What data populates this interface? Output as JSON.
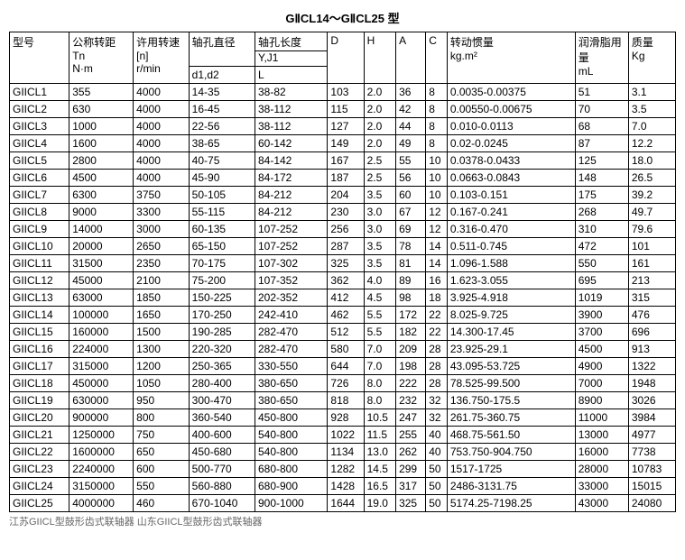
{
  "title": "GⅡCL14～GⅡCL25 型",
  "columns": {
    "model": "型号",
    "torque": "公称转距\nTn\nN·m",
    "speed": "许用转速\n[n]\nr/min",
    "bore": "轴孔直径",
    "bore_sub": "d1,d2",
    "bore_len": "轴孔长度",
    "bore_len_sub1": "Y,J1",
    "bore_len_sub2": "L",
    "D": "D",
    "H": "H",
    "A": "A",
    "C": "C",
    "inertia": "转动惯量\nkg.m²",
    "grease": "润滑脂用\n量\nmL",
    "mass": "质量\nKg"
  },
  "rows": [
    [
      "GIICL1",
      "355",
      "4000",
      "14-35",
      "38-82",
      "103",
      "2.0",
      "36",
      "8",
      "0.0035-0.00375",
      "51",
      "3.1"
    ],
    [
      "GIICL2",
      "630",
      "4000",
      "16-45",
      "38-112",
      "115",
      "2.0",
      "42",
      "8",
      "0.00550-0.00675",
      "70",
      "3.5"
    ],
    [
      "GIICL3",
      "1000",
      "4000",
      "22-56",
      "38-112",
      "127",
      "2.0",
      "44",
      "8",
      "0.010-0.0113",
      "68",
      "7.0"
    ],
    [
      "GIICL4",
      "1600",
      "4000",
      "38-65",
      "60-142",
      "149",
      "2.0",
      "49",
      "8",
      "0.02-0.0245",
      "87",
      "12.2"
    ],
    [
      "GIICL5",
      "2800",
      "4000",
      "40-75",
      "84-142",
      "167",
      "2.5",
      "55",
      "10",
      "0.0378-0.0433",
      "125",
      "18.0"
    ],
    [
      "GIICL6",
      "4500",
      "4000",
      "45-90",
      "84-172",
      "187",
      "2.5",
      "56",
      "10",
      "0.0663-0.0843",
      "148",
      "26.5"
    ],
    [
      "GIICL7",
      "6300",
      "3750",
      "50-105",
      "84-212",
      "204",
      "3.5",
      "60",
      "10",
      "0.103-0.151",
      "175",
      "39.2"
    ],
    [
      "GIICL8",
      "9000",
      "3300",
      "55-115",
      "84-212",
      "230",
      "3.0",
      "67",
      "12",
      "0.167-0.241",
      "268",
      "49.7"
    ],
    [
      "GIICL9",
      "14000",
      "3000",
      "60-135",
      "107-252",
      "256",
      "3.0",
      "69",
      "12",
      "0.316-0.470",
      "310",
      "79.6"
    ],
    [
      "GIICL10",
      "20000",
      "2650",
      "65-150",
      "107-252",
      "287",
      "3.5",
      "78",
      "14",
      "0.511-0.745",
      "472",
      "101"
    ],
    [
      "GIICL11",
      "31500",
      "2350",
      "70-175",
      "107-302",
      "325",
      "3.5",
      "81",
      "14",
      "1.096-1.588",
      "550",
      "161"
    ],
    [
      "GIICL12",
      "45000",
      "2100",
      "75-200",
      "107-352",
      "362",
      "4.0",
      "89",
      "16",
      "1.623-3.055",
      "695",
      "213"
    ],
    [
      "GIICL13",
      "63000",
      "1850",
      "150-225",
      "202-352",
      "412",
      "4.5",
      "98",
      "18",
      "3.925-4.918",
      "1019",
      "315"
    ],
    [
      "GIICL14",
      "100000",
      "1650",
      "170-250",
      "242-410",
      "462",
      "5.5",
      "172",
      "22",
      "8.025-9.725",
      "3900",
      "476"
    ],
    [
      "GIICL15",
      "160000",
      "1500",
      "190-285",
      "282-470",
      "512",
      "5.5",
      "182",
      "22",
      "14.300-17.45",
      "3700",
      "696"
    ],
    [
      "GIICL16",
      "224000",
      "1300",
      "220-320",
      "282-470",
      "580",
      "7.0",
      "209",
      "28",
      "23.925-29.1",
      "4500",
      "913"
    ],
    [
      "GIICL17",
      "315000",
      "1200",
      "250-365",
      "330-550",
      "644",
      "7.0",
      "198",
      "28",
      "43.095-53.725",
      "4900",
      "1322"
    ],
    [
      "GIICL18",
      "450000",
      "1050",
      "280-400",
      "380-650",
      "726",
      "8.0",
      "222",
      "28",
      "78.525-99.500",
      "7000",
      "1948"
    ],
    [
      "GIICL19",
      "630000",
      "950",
      "300-470",
      "380-650",
      "818",
      "8.0",
      "232",
      "32",
      "136.750-175.5",
      "8900",
      "3026"
    ],
    [
      "GIICL20",
      "900000",
      "800",
      "360-540",
      "450-800",
      "928",
      "10.5",
      "247",
      "32",
      "261.75-360.75",
      "11000",
      "3984"
    ],
    [
      "GIICL21",
      "1250000",
      "750",
      "400-600",
      "540-800",
      "1022",
      "11.5",
      "255",
      "40",
      "468.75-561.50",
      "13000",
      "4977"
    ],
    [
      "GIICL22",
      "1600000",
      "650",
      "450-680",
      "540-800",
      "1134",
      "13.0",
      "262",
      "40",
      "753.750-904.750",
      "16000",
      "7738"
    ],
    [
      "GIICL23",
      "2240000",
      "600",
      "500-770",
      "680-800",
      "1282",
      "14.5",
      "299",
      "50",
      "1517-1725",
      "28000",
      "10783"
    ],
    [
      "GIICL24",
      "3150000",
      "550",
      "560-880",
      "680-900",
      "1428",
      "16.5",
      "317",
      "50",
      "2486-3131.75",
      "33000",
      "15015"
    ],
    [
      "GIICL25",
      "4000000",
      "460",
      "670-1040",
      "900-1000",
      "1644",
      "19.0",
      "325",
      "50",
      "5174.25-7198.25",
      "43000",
      "24080"
    ]
  ],
  "footer": "江苏GIICL型鼓形齿式联轴器   山东GIICL型鼓形齿式联轴器"
}
